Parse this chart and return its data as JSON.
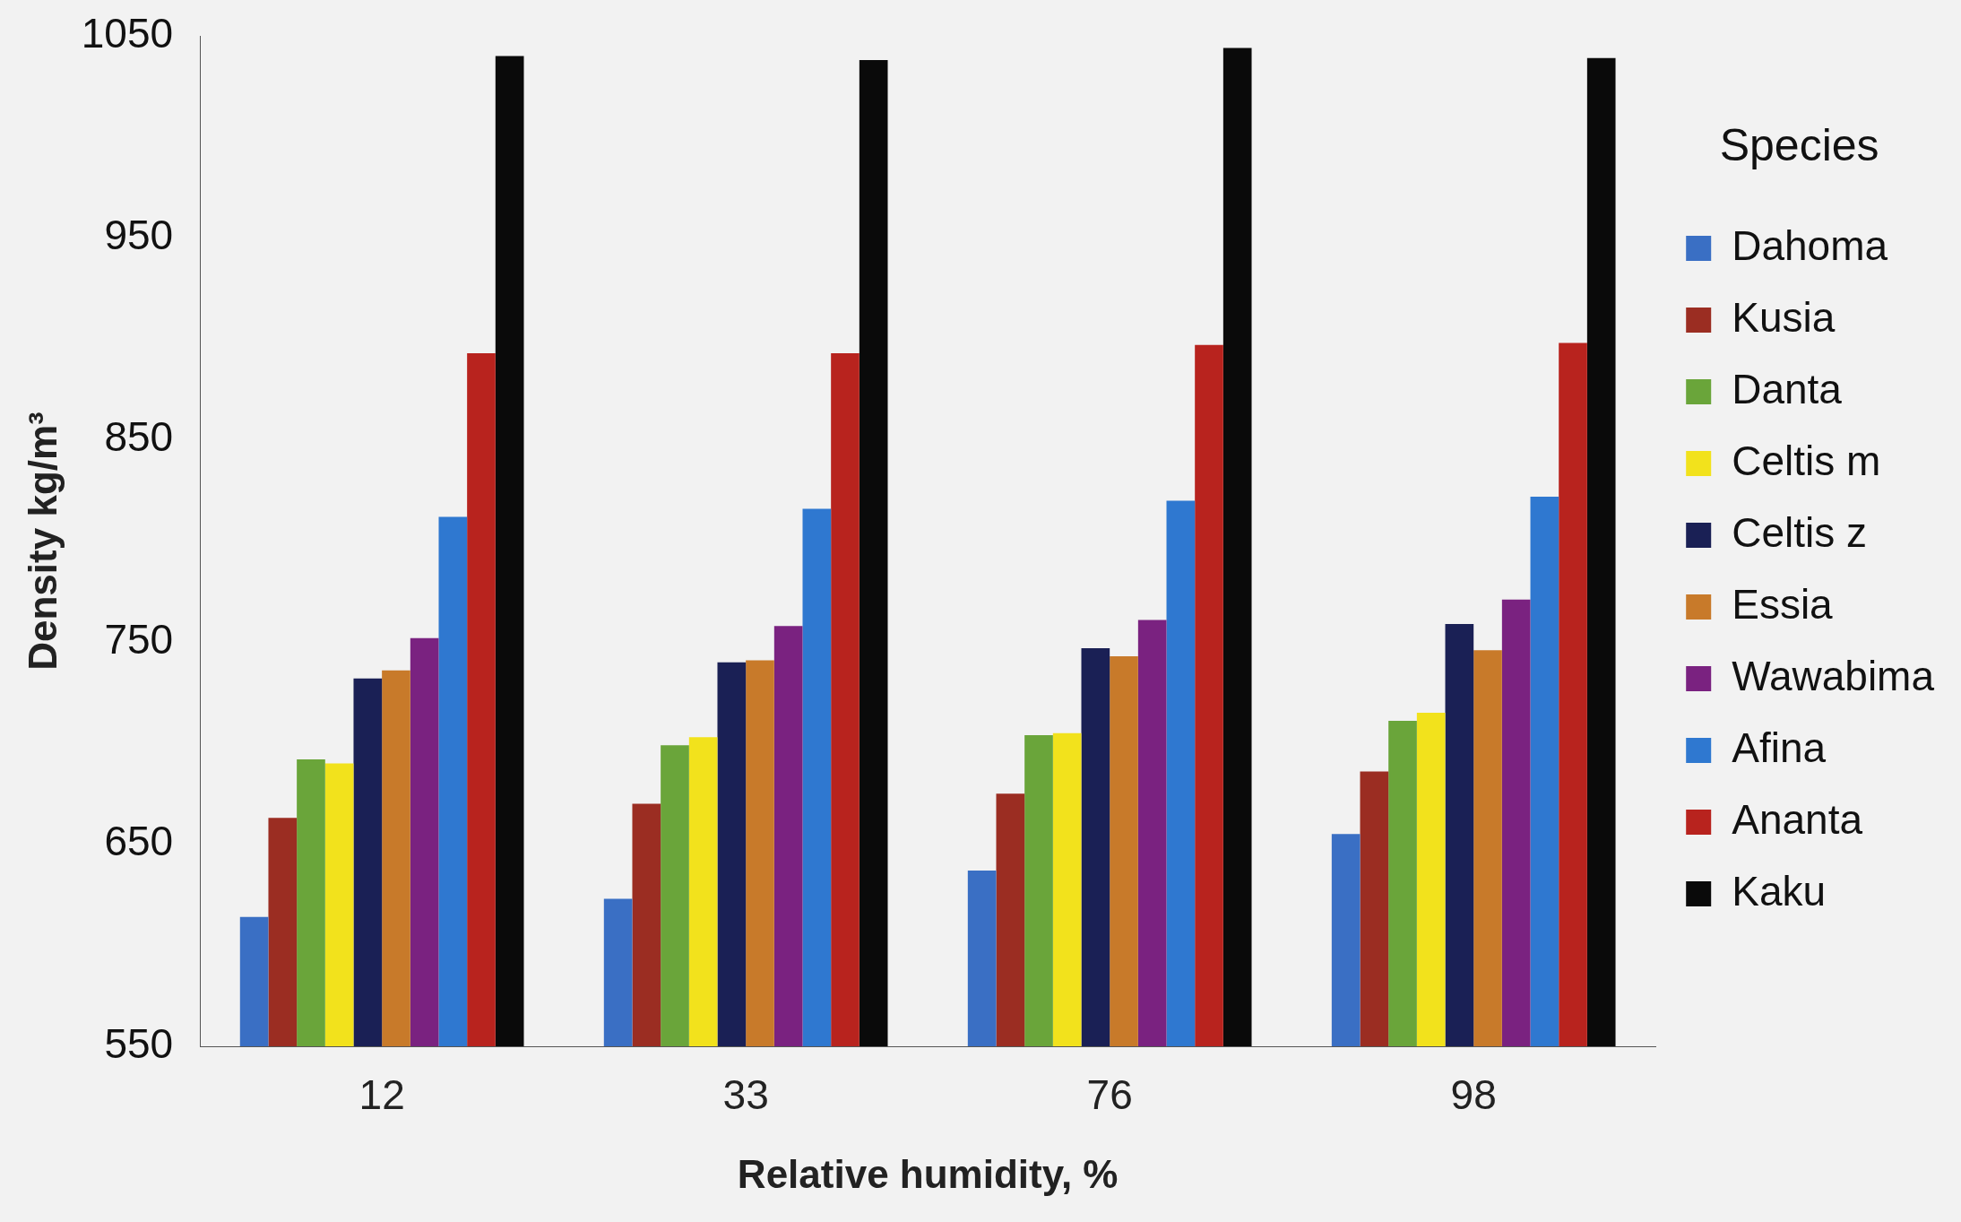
{
  "chart_data": {
    "type": "bar",
    "xlabel": "Relative humidity, %",
    "ylabel": "Density kg/m³",
    "legend_title": "Species",
    "legend": "right",
    "grid": false,
    "categories": [
      "12",
      "33",
      "76",
      "98"
    ],
    "ylim": [
      550,
      1050
    ],
    "yticks": [
      550,
      650,
      750,
      850,
      950,
      1050
    ],
    "series": [
      {
        "name": "Dahoma",
        "color": "#3a6fc4",
        "values": [
          614,
          623,
          637,
          655
        ]
      },
      {
        "name": "Kusia",
        "color": "#9b2d22",
        "values": [
          663,
          670,
          675,
          686
        ]
      },
      {
        "name": "Danta",
        "color": "#6aa53a",
        "values": [
          692,
          699,
          704,
          711
        ]
      },
      {
        "name": "Celtis m",
        "color": "#f2e21c",
        "values": [
          690,
          703,
          705,
          715
        ]
      },
      {
        "name": "Celtis z",
        "color": "#1a2055",
        "values": [
          732,
          740,
          747,
          759
        ]
      },
      {
        "name": "Essia",
        "color": "#c87a2a",
        "values": [
          736,
          741,
          743,
          746
        ]
      },
      {
        "name": "Wawabima",
        "color": "#7a2280",
        "values": [
          752,
          758,
          761,
          771
        ]
      },
      {
        "name": "Afina",
        "color": "#2f78d0",
        "values": [
          812,
          816,
          820,
          822
        ]
      },
      {
        "name": "Ananta",
        "color": "#b8231e",
        "values": [
          893,
          893,
          897,
          898
        ]
      },
      {
        "name": "Kaku",
        "color": "#0a0a0a",
        "values": [
          1040,
          1038,
          1044,
          1039
        ]
      }
    ]
  }
}
